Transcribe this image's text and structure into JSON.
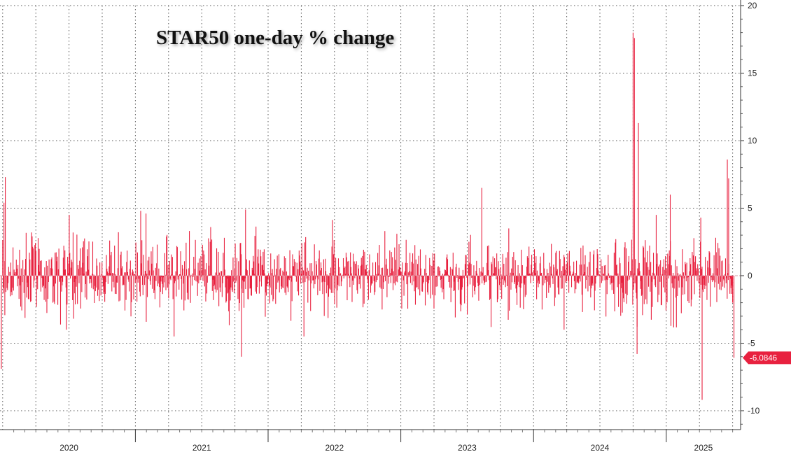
{
  "chart_data": {
    "type": "bar",
    "title": "STAR50 one-day % change",
    "y_ticks": [
      20,
      15,
      10,
      5,
      0,
      -5,
      -10
    ],
    "ylim": [
      -11.4,
      20
    ],
    "x_range": [
      2019.98,
      2025.56
    ],
    "x_year_labels": [
      {
        "year": 2020,
        "label": "2020"
      },
      {
        "year": 2021,
        "label": "2021"
      },
      {
        "year": 2022,
        "label": "2022"
      },
      {
        "year": 2023,
        "label": "2023"
      },
      {
        "year": 2024,
        "label": "2024"
      },
      {
        "year": 2025,
        "label": "2025"
      }
    ],
    "last_value_label": "-6.0846",
    "last_value": -6.0846,
    "grid": true,
    "bar_color": "#e8213f",
    "label_bg_color": "#e8213f",
    "notable_values": [
      {
        "x": 2019.99,
        "y": -6.9
      },
      {
        "x": 2020.01,
        "y": 5.4
      },
      {
        "x": 2020.02,
        "y": 7.3
      },
      {
        "x": 2020.48,
        "y": -4.0
      },
      {
        "x": 2021.04,
        "y": 4.8
      },
      {
        "x": 2021.08,
        "y": 4.6
      },
      {
        "x": 2021.83,
        "y": 4.9
      },
      {
        "x": 2021.8,
        "y": -6.0
      },
      {
        "x": 2022.27,
        "y": -4.5
      },
      {
        "x": 2023.61,
        "y": 6.5
      },
      {
        "x": 2023.68,
        "y": -3.8
      },
      {
        "x": 2024.23,
        "y": -4.0
      },
      {
        "x": 2024.75,
        "y": 18.0
      },
      {
        "x": 2024.76,
        "y": 17.6
      },
      {
        "x": 2024.78,
        "y": -5.8
      },
      {
        "x": 2024.79,
        "y": 11.3
      },
      {
        "x": 2025.03,
        "y": 6.0
      },
      {
        "x": 2025.26,
        "y": 4.3
      },
      {
        "x": 2025.27,
        "y": -9.2
      },
      {
        "x": 2025.46,
        "y": 8.6
      },
      {
        "x": 2025.47,
        "y": 7.2
      },
      {
        "x": 2025.5,
        "y": -2.0
      },
      {
        "x": 2025.51,
        "y": -6.0846
      }
    ]
  }
}
